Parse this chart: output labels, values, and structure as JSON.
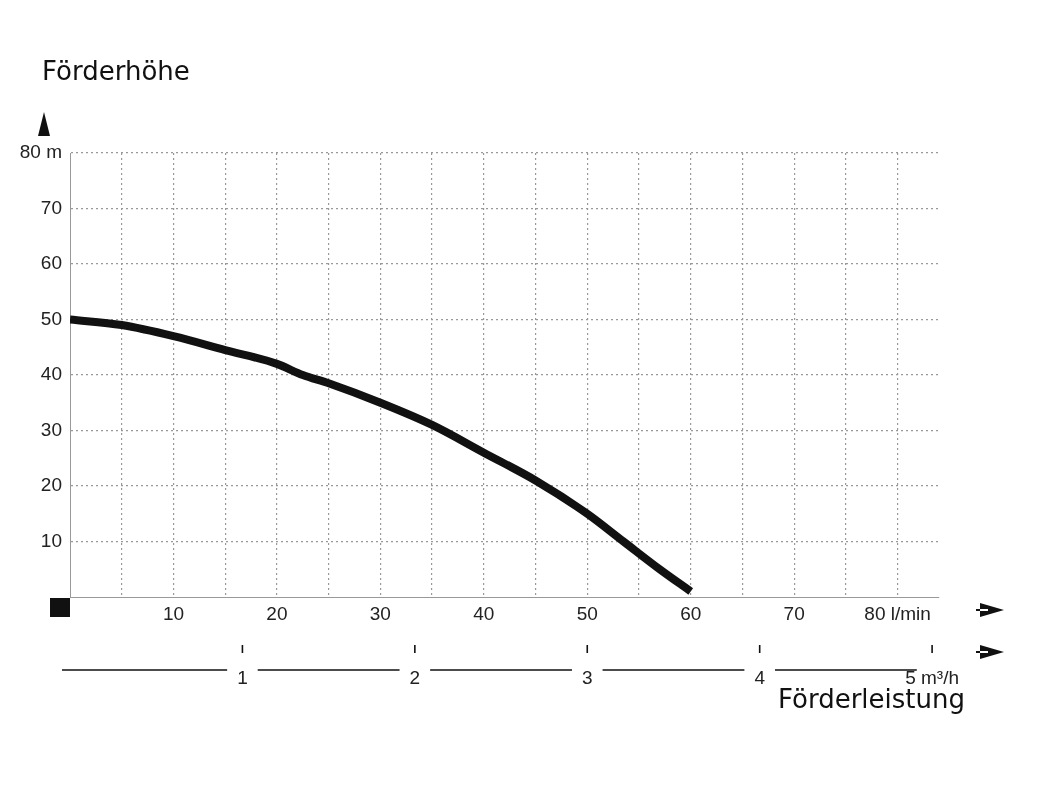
{
  "chart_data": {
    "type": "line",
    "xlabel": "Förderleistung",
    "ylabel": "Förderhöhe",
    "series": [
      {
        "color": "#111111",
        "x": [
          0,
          5,
          10,
          15,
          20,
          22.5,
          25,
          30,
          35,
          40,
          45,
          50,
          53.5,
          57,
          60
        ],
        "values": [
          50,
          49,
          47,
          44.5,
          42,
          40,
          38.5,
          35,
          31,
          26,
          21,
          15,
          10,
          5,
          1
        ]
      }
    ],
    "xlim": [
      0,
      84
    ],
    "xticks": [
      {
        "value": 5,
        "label": null
      },
      10,
      {
        "value": 15,
        "label": null
      },
      20,
      {
        "value": 25,
        "label": null
      },
      30,
      {
        "value": 35,
        "label": null
      },
      40,
      {
        "value": 45,
        "label": null
      },
      50,
      {
        "value": 55,
        "label": null
      },
      60,
      {
        "value": 65,
        "label": null
      },
      70,
      {
        "value": 75,
        "label": null
      },
      {
        "value": 80,
        "label": "80 l/min"
      }
    ],
    "x2lim": [
      0,
      5.04
    ],
    "x2ticks": [
      1,
      2,
      3,
      4,
      {
        "value": 5,
        "label": "5 m³/h"
      }
    ],
    "ylim": [
      0,
      80
    ],
    "yticks": [
      10,
      20,
      30,
      40,
      50,
      60,
      70,
      {
        "value": 80,
        "label": "80 m"
      }
    ],
    "grid": true,
    "legend": false,
    "marker": "none",
    "line_style": "solid"
  }
}
